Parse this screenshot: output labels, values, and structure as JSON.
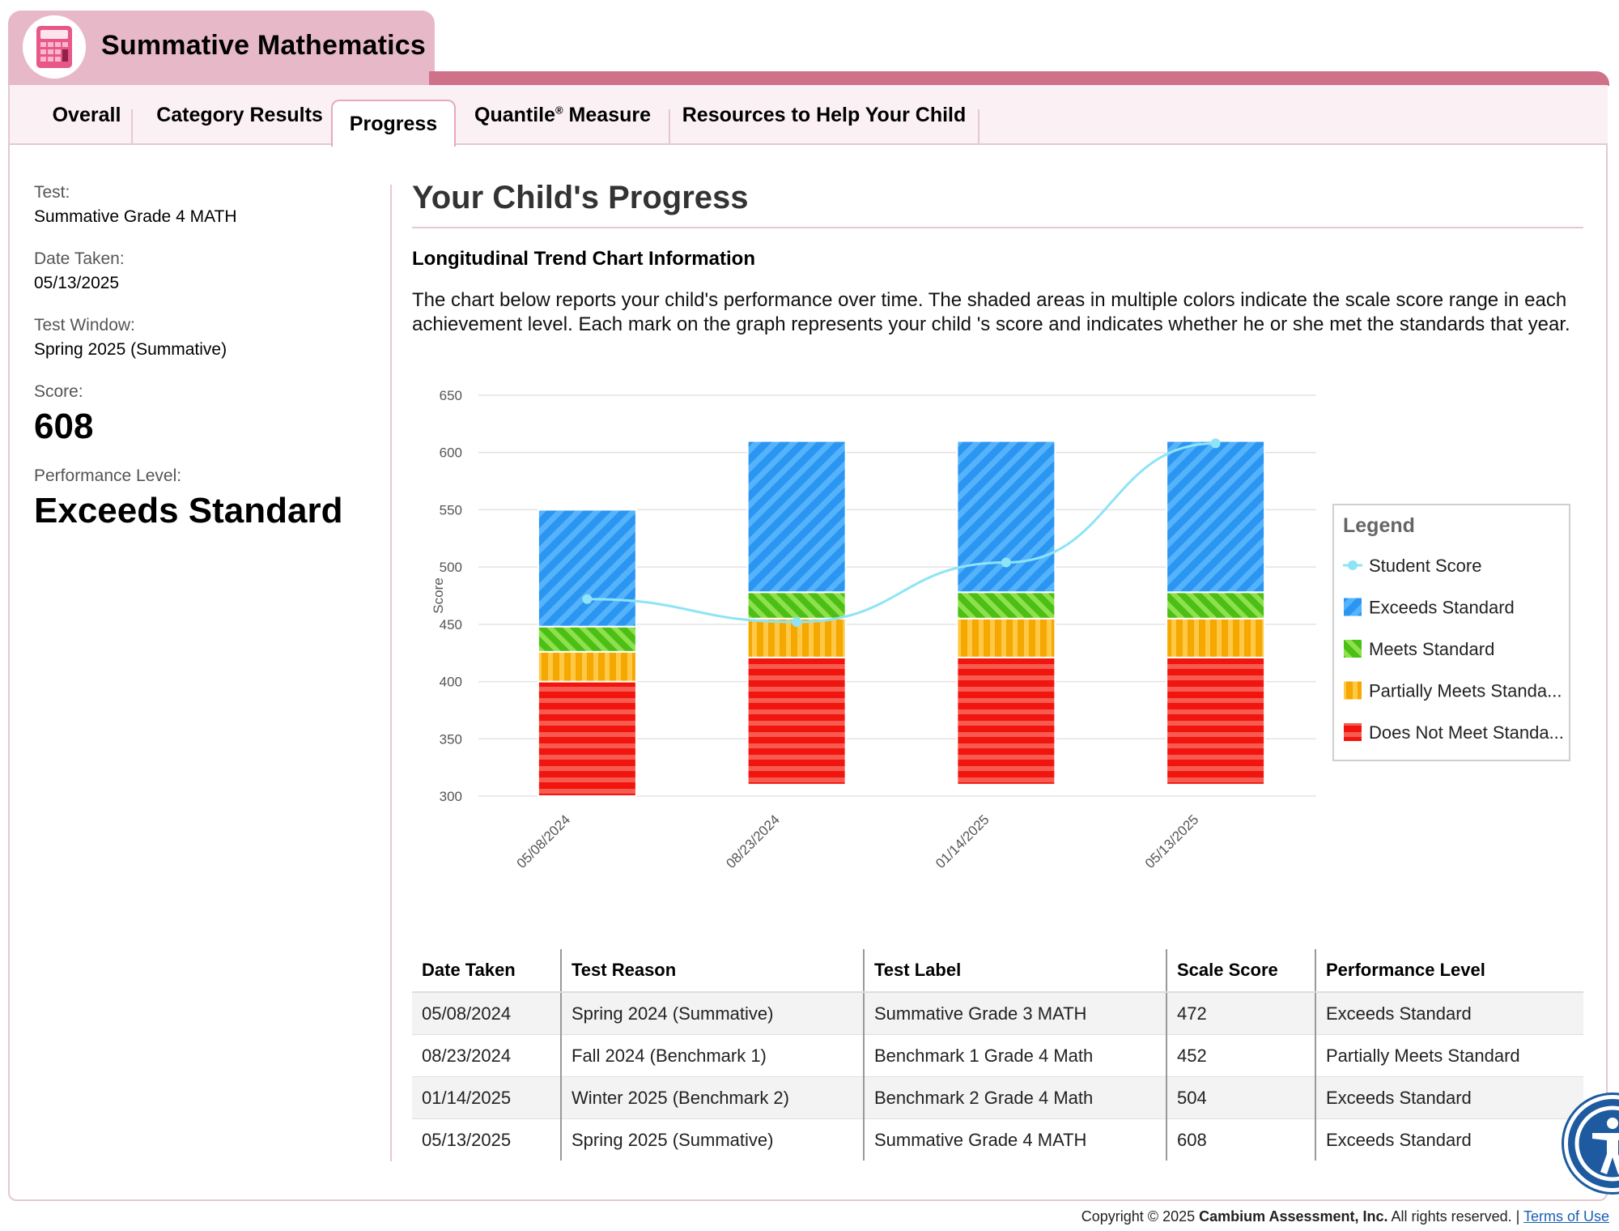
{
  "header": {
    "title": "Summative Mathematics",
    "logo_icon": "calculator-icon"
  },
  "tabs": [
    {
      "label": "Overall"
    },
    {
      "label": "Category Results"
    },
    {
      "label": "Progress",
      "active": true
    },
    {
      "label": "Quantile",
      "superscript": "®",
      "label_rest": " Measure"
    },
    {
      "label": "Resources to Help Your Child"
    }
  ],
  "summary": {
    "test_label": "Test:",
    "test_value": "Summative Grade 4 MATH",
    "date_label": "Date Taken:",
    "date_value": "05/13/2025",
    "window_label": "Test Window:",
    "window_value": "Spring 2025 (Summative)",
    "score_label": "Score:",
    "score_value": "608",
    "level_label": "Performance Level:",
    "level_value": "Exceeds Standard"
  },
  "main": {
    "title": "Your Child's Progress",
    "info_heading": "Longitudinal Trend Chart Information",
    "info_text": "The chart below reports your child's performance over time. The shaded areas in multiple colors indicate the scale score range in each achievement level. Each mark on the graph represents your child 's score and indicates whether he or she met the standards that year."
  },
  "chart_data": {
    "type": "bar",
    "ylabel": "Score",
    "ylim": [
      300,
      650
    ],
    "yticks": [
      300,
      350,
      400,
      450,
      500,
      550,
      600,
      650
    ],
    "categories": [
      "05/08/2024",
      "08/23/2024",
      "01/14/2025",
      "05/13/2025"
    ],
    "stacked_ranges": [
      {
        "name": "Does Not Meet Standard",
        "color": "#f0160f",
        "ranges": [
          [
            300,
            400
          ],
          [
            310,
            421
          ],
          [
            310,
            421
          ],
          [
            310,
            421
          ]
        ]
      },
      {
        "name": "Partially Meets Standard",
        "color": "#f5a800",
        "ranges": [
          [
            400,
            426
          ],
          [
            421,
            455
          ],
          [
            421,
            455
          ],
          [
            421,
            455
          ]
        ]
      },
      {
        "name": "Meets Standard",
        "color": "#4cbf14",
        "ranges": [
          [
            426,
            448
          ],
          [
            455,
            478
          ],
          [
            455,
            478
          ],
          [
            455,
            478
          ]
        ]
      },
      {
        "name": "Exceeds Standard",
        "color": "#2b95f2",
        "ranges": [
          [
            448,
            550
          ],
          [
            478,
            610
          ],
          [
            478,
            610
          ],
          [
            478,
            610
          ]
        ]
      }
    ],
    "series": [
      {
        "name": "Student Score",
        "type": "line",
        "color": "#8ee4f5",
        "values": [
          472,
          452,
          504,
          608
        ]
      }
    ],
    "legend": {
      "title": "Legend",
      "position": "right",
      "items": [
        "Student Score",
        "Exceeds Standard",
        "Meets Standard",
        "Partially Meets Standa...",
        "Does Not Meet Standa..."
      ]
    }
  },
  "table": {
    "headers": [
      "Date Taken",
      "Test Reason",
      "Test Label",
      "Scale Score",
      "Performance Level"
    ],
    "rows": [
      [
        "05/08/2024",
        "Spring 2024 (Summative)",
        "Summative Grade 3 MATH",
        "472",
        "Exceeds Standard"
      ],
      [
        "08/23/2024",
        "Fall 2024 (Benchmark 1)",
        "Benchmark 1 Grade 4 Math",
        "452",
        "Partially Meets Standard"
      ],
      [
        "01/14/2025",
        "Winter 2025 (Benchmark 2)",
        "Benchmark 2 Grade 4 Math",
        "504",
        "Exceeds Standard"
      ],
      [
        "05/13/2025",
        "Spring 2025 (Summative)",
        "Summative Grade 4 MATH",
        "608",
        "Exceeds Standard"
      ]
    ]
  },
  "footer": {
    "prefix": "Copyright © 2025 ",
    "company": "Cambium Assessment, Inc.",
    "suffix": " All rights reserved. | ",
    "terms_link": "Terms of Use"
  },
  "accessibility": {
    "icon": "accessibility-icon"
  }
}
